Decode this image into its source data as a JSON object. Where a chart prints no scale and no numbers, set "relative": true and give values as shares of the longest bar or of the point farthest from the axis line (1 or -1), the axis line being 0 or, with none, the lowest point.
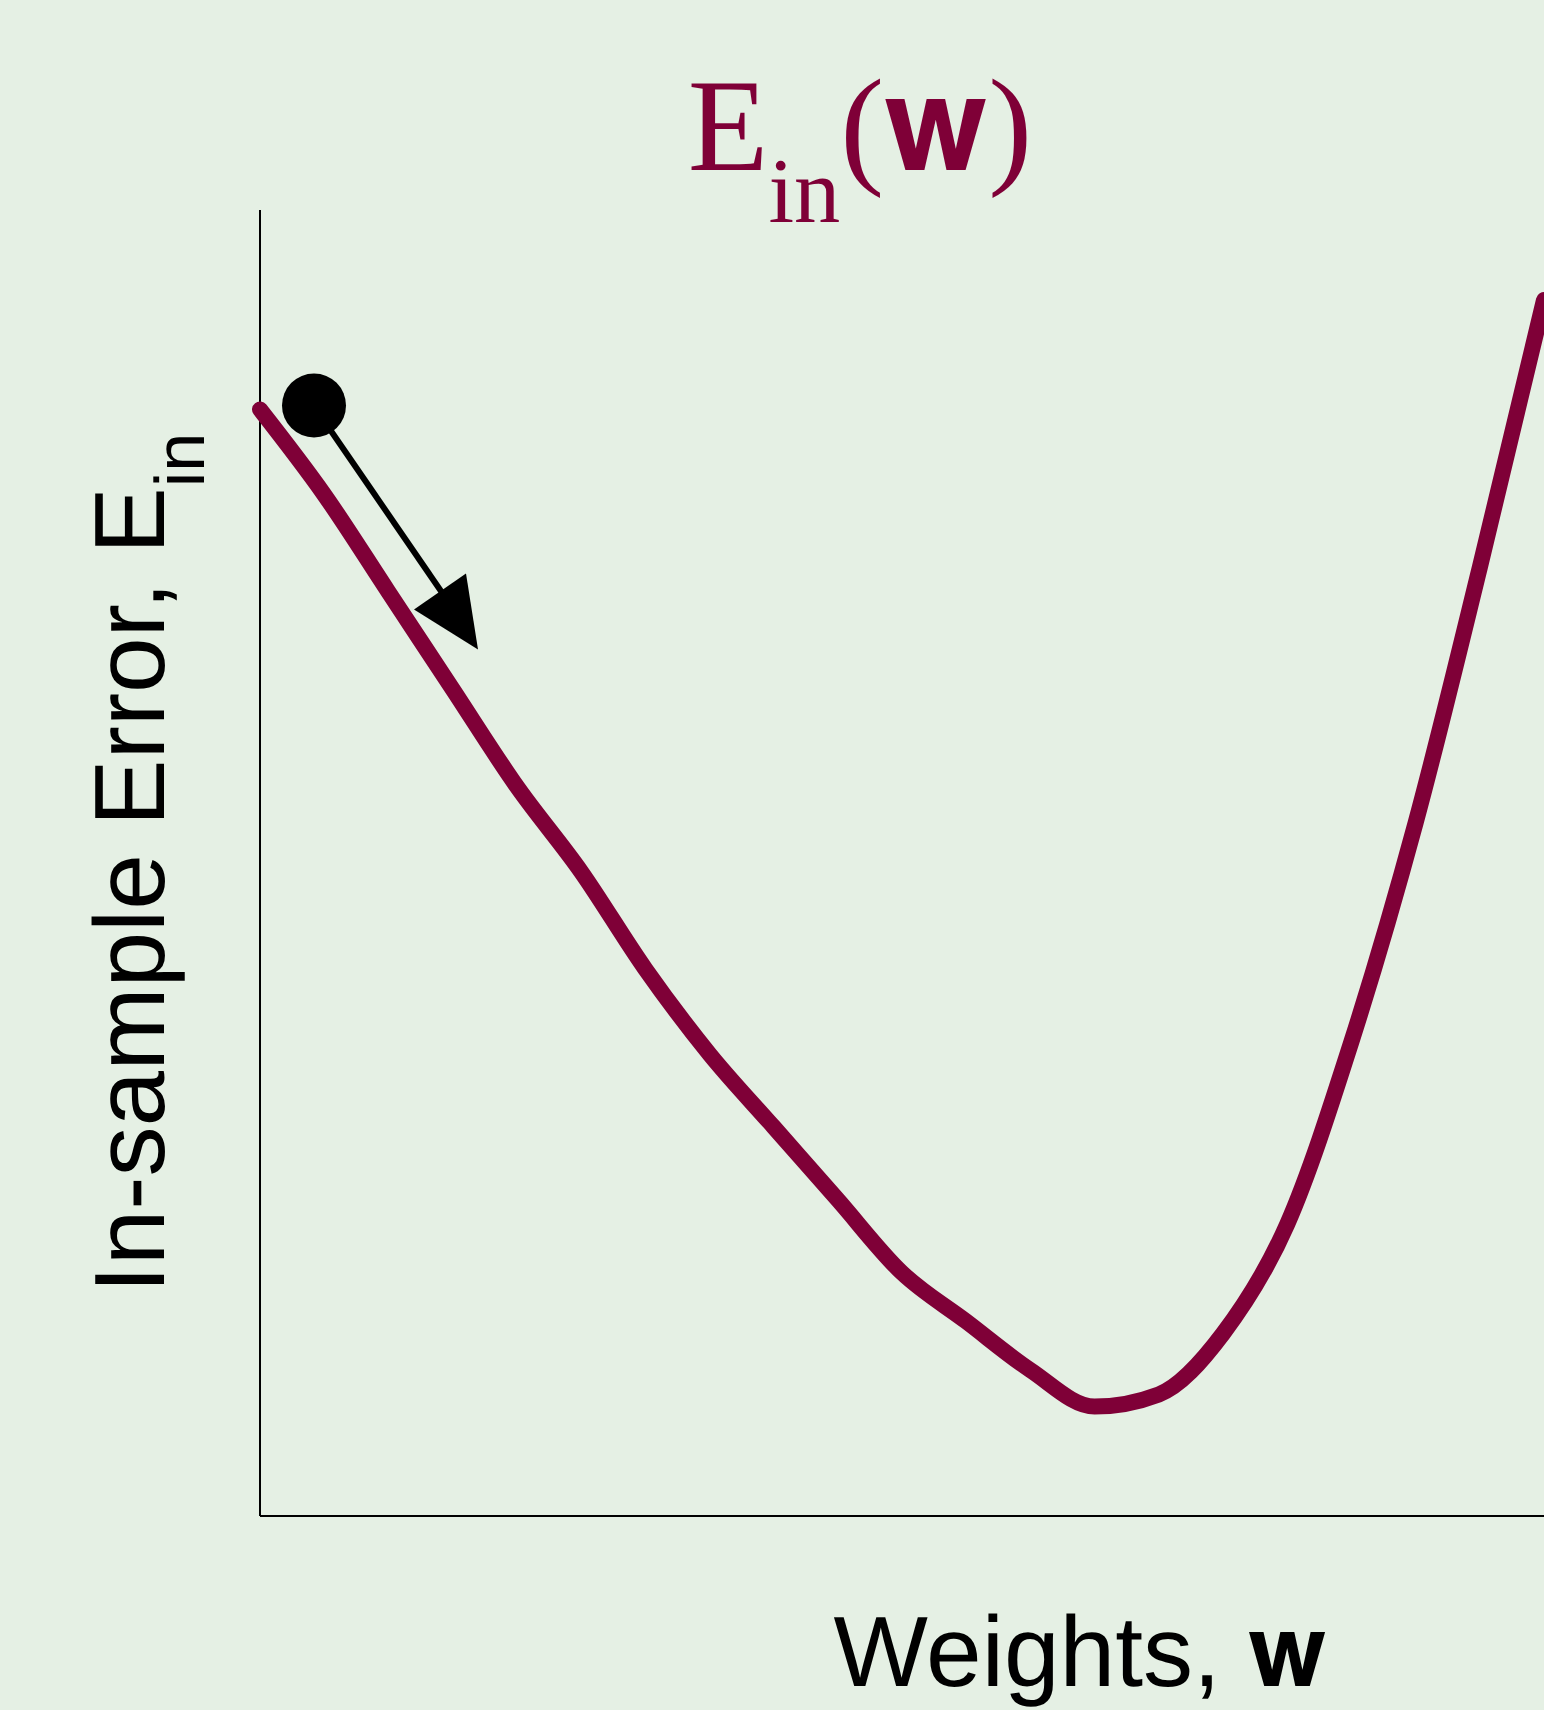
{
  "chart_data": {
    "type": "line",
    "title": "E$_{in}$(𝐰)",
    "xlabel": "Weights, 𝐰",
    "ylabel": "In-sample Error, E$_{in}$",
    "relative": true,
    "categories": [
      null,
      null,
      null,
      null,
      null,
      null,
      null,
      null,
      null,
      null,
      null,
      null,
      null,
      null,
      null,
      null,
      null,
      null,
      null,
      null,
      null
    ],
    "series": [
      {
        "color": "#7f0037",
        "values": [
          0.91,
          0.84,
          0.76,
          0.68,
          0.6,
          0.53,
          0.45,
          0.38,
          0.32,
          0.26,
          0.2,
          0.16,
          0.12,
          0.09,
          0.1,
          0.15,
          0.24,
          0.39,
          0.57,
          0.78,
          1.0
        ]
      }
    ]
  }
}
